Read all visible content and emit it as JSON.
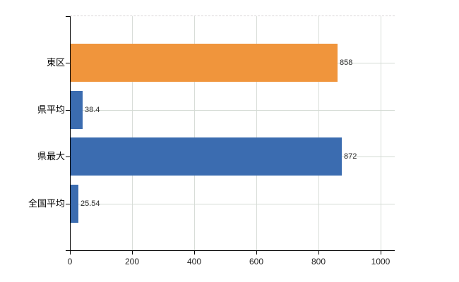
{
  "chart_data": {
    "type": "bar",
    "orientation": "horizontal",
    "title": "",
    "xlabel": "",
    "ylabel": "",
    "categories": [
      "東区",
      "県平均",
      "県最大",
      "全国平均"
    ],
    "values": [
      858,
      38.4,
      872,
      25.54
    ],
    "value_labels": [
      "858",
      "38.4",
      "872",
      "25.54"
    ],
    "bar_colors": [
      "#F0953C",
      "#3B6CB0",
      "#3B6CB0",
      "#3B6CB0"
    ],
    "xticks": [
      0,
      200,
      400,
      600,
      800,
      1000
    ],
    "xtick_labels": [
      "0",
      "200",
      "400",
      "600",
      "800",
      "1000"
    ],
    "xlim": [
      0,
      1045
    ],
    "grid": true,
    "legend": "none",
    "colors": {
      "axis": "#000000",
      "gridline": "#d8ddd8",
      "plot_border_dashed": "#d9d5d7",
      "background": "#ffffff",
      "label_text": "#2b2b2b"
    }
  }
}
